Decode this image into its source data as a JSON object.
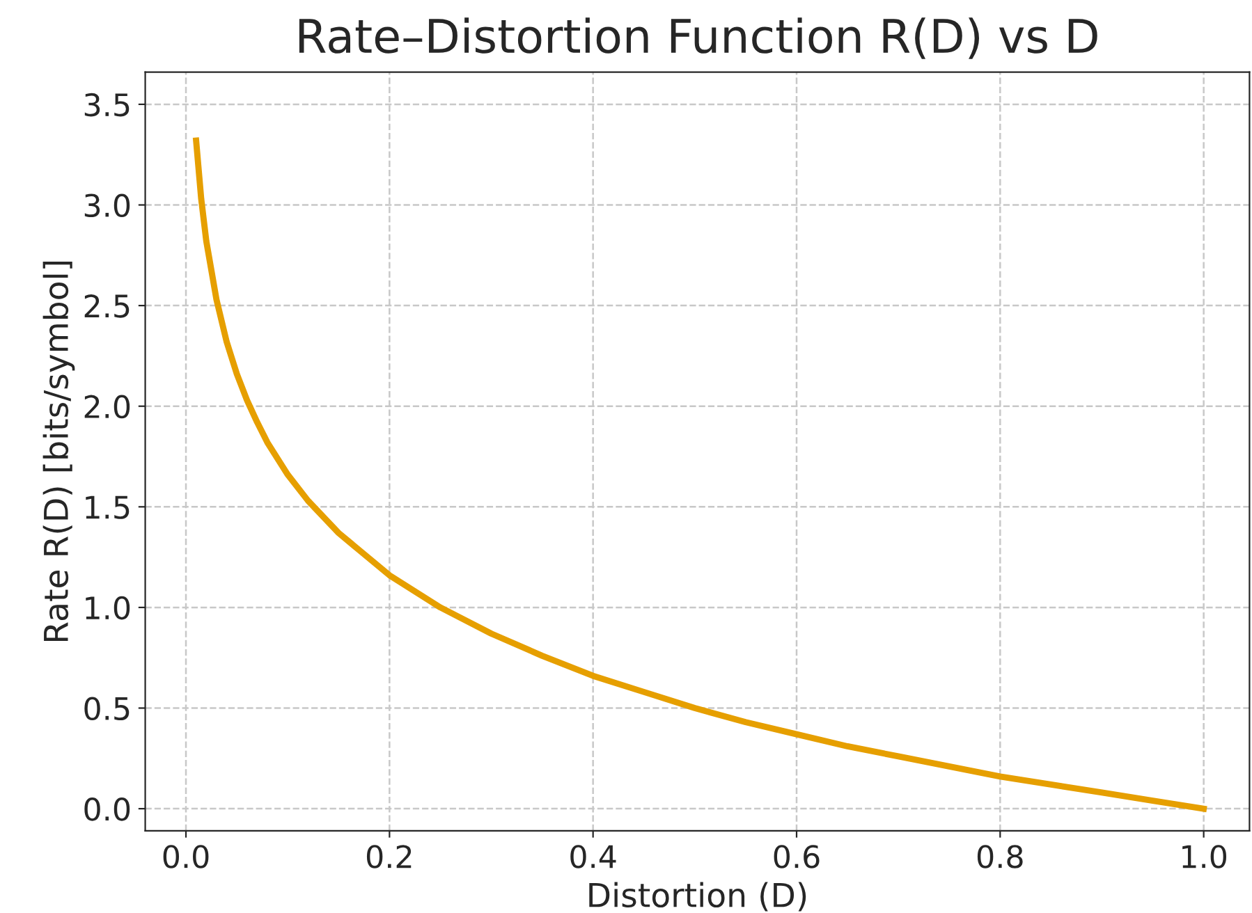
{
  "chart_data": {
    "type": "line",
    "title": "Rate–Distortion Function R(D) vs D",
    "xlabel": "Distortion (D)",
    "ylabel": "Rate R(D) [bits/symbol]",
    "x": [
      0.01,
      0.015,
      0.02,
      0.03,
      0.04,
      0.05,
      0.06,
      0.07,
      0.08,
      0.1,
      0.12,
      0.15,
      0.2,
      0.25,
      0.3,
      0.35,
      0.4,
      0.45,
      0.5,
      0.55,
      0.6,
      0.65,
      0.7,
      0.75,
      0.8,
      0.85,
      0.9,
      0.95,
      1.0
    ],
    "series": [
      {
        "color": "#e69f00",
        "values": [
          3.32,
          3.03,
          2.82,
          2.53,
          2.32,
          2.16,
          2.03,
          1.92,
          1.82,
          1.66,
          1.53,
          1.37,
          1.16,
          1.0,
          0.87,
          0.76,
          0.66,
          0.58,
          0.5,
          0.43,
          0.37,
          0.31,
          0.26,
          0.21,
          0.16,
          0.12,
          0.08,
          0.04,
          0.0
        ]
      }
    ],
    "xlim": [
      -0.04,
      1.045
    ],
    "ylim": [
      -0.11,
      3.66
    ],
    "xticks": [
      {
        "value": 0.0,
        "label": "0.0"
      },
      0.2,
      0.4,
      0.6,
      0.8,
      {
        "value": 1.0,
        "label": "1.0"
      }
    ],
    "yticks": [
      {
        "value": 0.0,
        "label": "0.0"
      },
      0.5,
      {
        "value": 1.0,
        "label": "1.0"
      },
      1.5,
      {
        "value": 2.0,
        "label": "2.0"
      },
      2.5,
      {
        "value": 3.0,
        "label": "3.0"
      },
      3.5
    ],
    "grid": true,
    "line_style": "solid",
    "marker": "none"
  }
}
